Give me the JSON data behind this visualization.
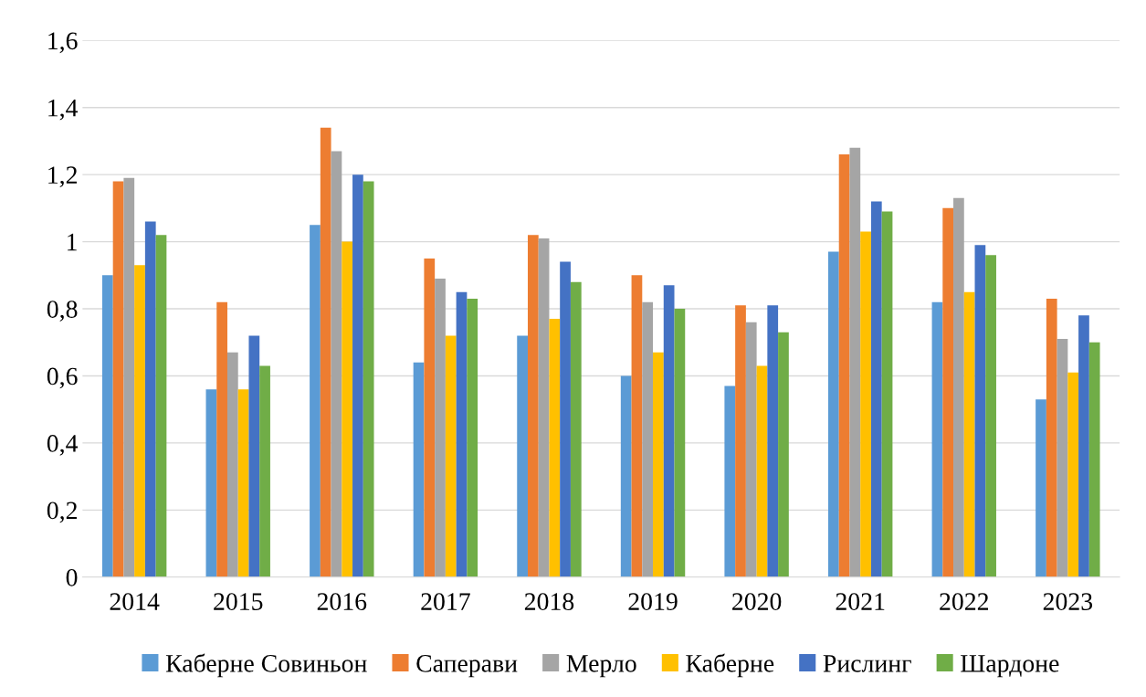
{
  "chart_data": {
    "type": "bar",
    "categories": [
      "2014",
      "2015",
      "2016",
      "2017",
      "2018",
      "2019",
      "2020",
      "2021",
      "2022",
      "2023"
    ],
    "series": [
      {
        "name": "Каберне Совиньон",
        "color": "#5b9bd5",
        "values": [
          0.9,
          0.56,
          1.05,
          0.64,
          0.72,
          0.6,
          0.57,
          0.97,
          0.82,
          0.53
        ]
      },
      {
        "name": "Саперави",
        "color": "#ed7d31",
        "values": [
          1.18,
          0.82,
          1.34,
          0.95,
          1.02,
          0.9,
          0.81,
          1.26,
          1.1,
          0.83
        ]
      },
      {
        "name": "Мерло",
        "color": "#a5a5a5",
        "values": [
          1.19,
          0.67,
          1.27,
          0.89,
          1.01,
          0.82,
          0.76,
          1.28,
          1.13,
          0.71
        ]
      },
      {
        "name": "Каберне",
        "color": "#ffc000",
        "values": [
          0.93,
          0.56,
          1.0,
          0.72,
          0.77,
          0.67,
          0.63,
          1.03,
          0.85,
          0.61
        ]
      },
      {
        "name": "Рислинг",
        "color": "#4472c4",
        "values": [
          1.06,
          0.72,
          1.2,
          0.85,
          0.94,
          0.87,
          0.81,
          1.12,
          0.99,
          0.78
        ]
      },
      {
        "name": "Шардоне",
        "color": "#70ad47",
        "values": [
          1.02,
          0.63,
          1.18,
          0.83,
          0.88,
          0.8,
          0.73,
          1.09,
          0.96,
          0.7
        ]
      }
    ],
    "ylim": [
      0,
      1.6
    ],
    "yticks": [
      0,
      {
        "value": 0.2,
        "label": "0,2"
      },
      {
        "value": 0.4,
        "label": "0,4"
      },
      {
        "value": 0.6,
        "label": "0,6"
      },
      {
        "value": 0.8,
        "label": "0,8"
      },
      1,
      {
        "value": 1.2,
        "label": "1,2"
      },
      {
        "value": 1.4,
        "label": "1,4"
      },
      {
        "value": 1.6,
        "label": "1,6"
      }
    ],
    "grid": "y",
    "legend": "bottom"
  }
}
